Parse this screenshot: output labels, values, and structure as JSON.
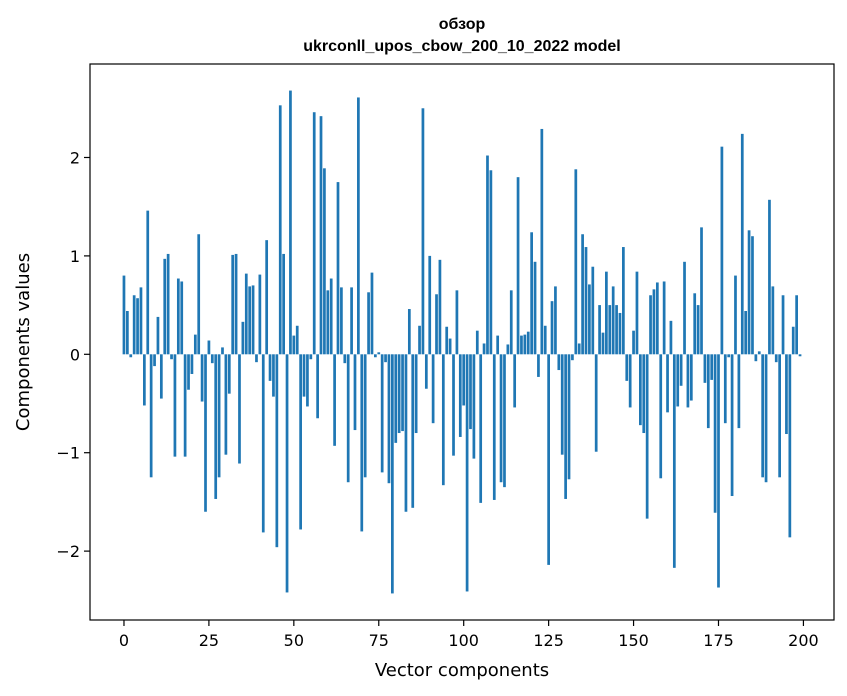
{
  "chart_data": {
    "type": "bar",
    "title": [
      "обзор",
      "ukrconll_upos_cbow_200_10_2022 model"
    ],
    "xlabel": "Vector components",
    "ylabel": "Components values",
    "xlim": [
      -10,
      209
    ],
    "ylim": [
      -2.7,
      2.95
    ],
    "xticks": [
      0,
      25,
      50,
      75,
      100,
      125,
      150,
      175,
      200
    ],
    "xtick_labels": [
      "0",
      "25",
      "50",
      "75",
      "100",
      "125",
      "150",
      "175",
      "200"
    ],
    "yticks": [
      -2,
      -1,
      0,
      1,
      2
    ],
    "ytick_labels": [
      "−2",
      "−1",
      "0",
      "1",
      "2"
    ],
    "grid": false,
    "bar_color": "#1f77b4",
    "x": [
      0,
      1,
      2,
      3,
      4,
      5,
      6,
      7,
      8,
      9,
      10,
      11,
      12,
      13,
      14,
      15,
      16,
      17,
      18,
      19,
      20,
      21,
      22,
      23,
      24,
      25,
      26,
      27,
      28,
      29,
      30,
      31,
      32,
      33,
      34,
      35,
      36,
      37,
      38,
      39,
      40,
      41,
      42,
      43,
      44,
      45,
      46,
      47,
      48,
      49,
      50,
      51,
      52,
      53,
      54,
      55,
      56,
      57,
      58,
      59,
      60,
      61,
      62,
      63,
      64,
      65,
      66,
      67,
      68,
      69,
      70,
      71,
      72,
      73,
      74,
      75,
      76,
      77,
      78,
      79,
      80,
      81,
      82,
      83,
      84,
      85,
      86,
      87,
      88,
      89,
      90,
      91,
      92,
      93,
      94,
      95,
      96,
      97,
      98,
      99,
      100,
      101,
      102,
      103,
      104,
      105,
      106,
      107,
      108,
      109,
      110,
      111,
      112,
      113,
      114,
      115,
      116,
      117,
      118,
      119,
      120,
      121,
      122,
      123,
      124,
      125,
      126,
      127,
      128,
      129,
      130,
      131,
      132,
      133,
      134,
      135,
      136,
      137,
      138,
      139,
      140,
      141,
      142,
      143,
      144,
      145,
      146,
      147,
      148,
      149,
      150,
      151,
      152,
      153,
      154,
      155,
      156,
      157,
      158,
      159,
      160,
      161,
      162,
      163,
      164,
      165,
      166,
      167,
      168,
      169,
      170,
      171,
      172,
      173,
      174,
      175,
      176,
      177,
      178,
      179,
      180,
      181,
      182,
      183,
      184,
      185,
      186,
      187,
      188,
      189,
      190,
      191,
      192,
      193,
      194,
      195,
      196,
      197,
      198,
      199
    ],
    "values": [
      0.8,
      0.44,
      -0.03,
      0.6,
      0.57,
      0.68,
      -0.52,
      1.46,
      -1.25,
      -0.12,
      0.38,
      -0.45,
      0.97,
      1.02,
      -0.05,
      -1.04,
      0.77,
      0.74,
      -1.04,
      -0.36,
      -0.2,
      0.2,
      1.22,
      -0.48,
      -1.6,
      0.14,
      -0.09,
      -1.47,
      -1.25,
      0.07,
      -1.02,
      -0.4,
      1.01,
      1.02,
      -1.11,
      0.33,
      0.82,
      0.69,
      0.7,
      -0.08,
      0.81,
      -1.81,
      1.16,
      -0.27,
      -0.43,
      -1.96,
      2.53,
      1.02,
      -2.42,
      2.68,
      0.19,
      0.29,
      -1.78,
      -0.43,
      -0.53,
      -0.05,
      2.46,
      -0.65,
      2.42,
      1.89,
      0.65,
      0.77,
      -0.93,
      1.75,
      0.68,
      -0.09,
      -1.3,
      0.68,
      -0.77,
      2.61,
      -1.8,
      -1.25,
      0.63,
      0.83,
      -0.03,
      0.02,
      -1.2,
      -0.08,
      -1.31,
      -2.43,
      -0.9,
      -0.8,
      -0.78,
      -1.6,
      0.46,
      -1.56,
      -0.8,
      0.29,
      2.5,
      -0.35,
      1.0,
      -0.7,
      0.61,
      0.96,
      -1.33,
      0.28,
      0.16,
      -1.03,
      0.65,
      -0.84,
      -0.52,
      -2.41,
      -0.76,
      -1.06,
      0.24,
      -1.51,
      0.11,
      2.02,
      1.87,
      -1.48,
      0.19,
      -1.3,
      -1.35,
      0.1,
      0.65,
      -0.54,
      1.8,
      0.19,
      0.2,
      0.23,
      1.24,
      0.94,
      -0.23,
      2.29,
      0.29,
      -2.14,
      0.54,
      0.69,
      -0.16,
      -1.02,
      -1.47,
      -1.27,
      -0.06,
      1.88,
      0.11,
      1.22,
      1.09,
      0.71,
      0.89,
      -0.99,
      0.5,
      0.22,
      0.84,
      0.5,
      0.69,
      0.5,
      0.42,
      1.09,
      -0.27,
      -0.54,
      0.24,
      0.84,
      -0.72,
      -0.8,
      -1.67,
      0.6,
      0.66,
      0.73,
      -1.26,
      0.74,
      -0.59,
      0.34,
      -2.17,
      -0.53,
      -0.32,
      0.94,
      -0.54,
      -0.47,
      0.62,
      0.5,
      1.29,
      -0.29,
      -0.75,
      -0.26,
      -1.61,
      -2.37,
      2.11,
      -0.7,
      -0.03,
      -1.44,
      0.8,
      -0.75,
      2.24,
      0.44,
      1.26,
      1.2,
      -0.07,
      0.03,
      -1.25,
      -1.3,
      1.57,
      0.69,
      -0.08,
      -1.25,
      0.6,
      -0.81,
      -1.86,
      0.28,
      0.6,
      -0.02
    ]
  }
}
